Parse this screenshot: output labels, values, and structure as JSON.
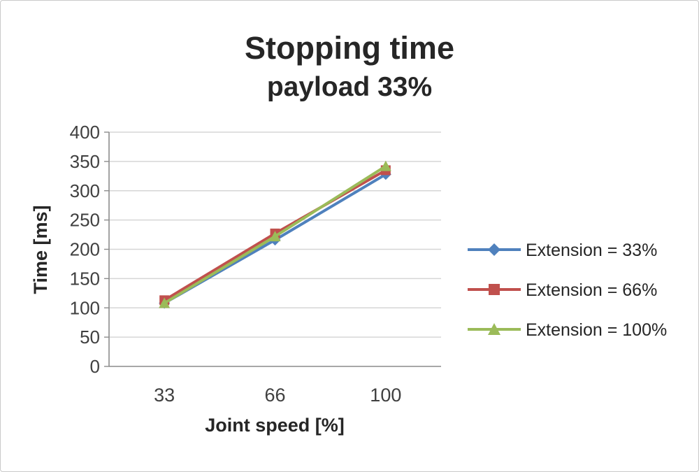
{
  "chart_data": {
    "type": "line",
    "title": "Stopping time",
    "subtitle": "payload 33%",
    "xlabel": "Joint speed [%]",
    "ylabel": "Time [ms]",
    "categories": [
      "33",
      "66",
      "100"
    ],
    "series": [
      {
        "name": "Extension = 33%",
        "color": "#4F81BD",
        "marker": "diamond",
        "values": [
          108,
          216,
          328
        ]
      },
      {
        "name": "Extension = 66%",
        "color": "#C0504D",
        "marker": "square",
        "values": [
          113,
          227,
          335
        ]
      },
      {
        "name": "Extension = 100%",
        "color": "#9BBB59",
        "marker": "triangle",
        "values": [
          108,
          222,
          342
        ]
      }
    ],
    "ylim": [
      0,
      400
    ],
    "ytick_step": 50,
    "grid": true,
    "legend_position": "right",
    "colors": {
      "gridline": "#d6d6d6",
      "axis": "#8c8c8c",
      "tick_text": "#404040",
      "legend_text": "#262626"
    }
  }
}
